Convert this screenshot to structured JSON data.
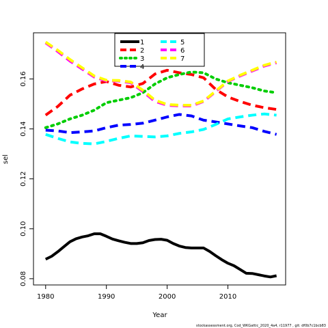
{
  "chart_data": {
    "type": "line",
    "xlabel": "Year",
    "ylabel": "sel",
    "xlim": [
      1978,
      2019.5
    ],
    "ylim": [
      0.0775,
      0.1785
    ],
    "x_ticks": [
      1980,
      1990,
      2000,
      2010
    ],
    "y_ticks": [
      0.08,
      0.1,
      0.12,
      0.14,
      0.16
    ],
    "y_tick_labels": [
      "0.08",
      "0.10",
      "0.12",
      "0.14",
      "0.16"
    ],
    "legend_position": "top-center",
    "footnote": "stockassessment.org, Cod_WKGattic_2020_4a4, r11977 , git: df0b7c1bcb83",
    "series": [
      {
        "name": "1",
        "color": "#000000",
        "dash": "solid",
        "x": [
          1980,
          1981,
          1982,
          1983,
          1984,
          1985,
          1986,
          1987,
          1988,
          1989,
          1990,
          1991,
          1992,
          1993,
          1994,
          1995,
          1996,
          1997,
          1998,
          1999,
          2000,
          2001,
          2002,
          2003,
          2004,
          2005,
          2006,
          2007,
          2008,
          2009,
          2010,
          2011,
          2012,
          2013,
          2014,
          2015,
          2016,
          2017,
          2018
        ],
        "y": [
          0.0878,
          0.089,
          0.0908,
          0.0928,
          0.0948,
          0.096,
          0.0967,
          0.0972,
          0.098,
          0.098,
          0.097,
          0.0959,
          0.0952,
          0.0946,
          0.0941,
          0.0941,
          0.0944,
          0.0953,
          0.0957,
          0.0958,
          0.0954,
          0.0941,
          0.0931,
          0.0925,
          0.0923,
          0.0923,
          0.0923,
          0.0909,
          0.0892,
          0.0876,
          0.0862,
          0.0852,
          0.0837,
          0.0822,
          0.0821,
          0.0816,
          0.0811,
          0.0807,
          0.0812
        ]
      },
      {
        "name": "2",
        "color": "#ff0000",
        "dash": "dashed",
        "x": [
          1980,
          1982,
          1984,
          1986,
          1988,
          1990,
          1992,
          1994,
          1996,
          1998,
          2000,
          2002,
          2004,
          2006,
          2008,
          2010,
          2012,
          2014,
          2016,
          2018
        ],
        "y": [
          0.1455,
          0.149,
          0.1535,
          0.156,
          0.158,
          0.159,
          0.1575,
          0.1568,
          0.1582,
          0.162,
          0.1635,
          0.1625,
          0.1618,
          0.1605,
          0.1558,
          0.1528,
          0.151,
          0.1495,
          0.1485,
          0.1478
        ]
      },
      {
        "name": "3",
        "color": "#00cd00",
        "dash": "dotted",
        "x": [
          1980,
          1982,
          1984,
          1986,
          1988,
          1990,
          1992,
          1994,
          1996,
          1998,
          2000,
          2002,
          2004,
          2006,
          2008,
          2010,
          2012,
          2014,
          2016,
          2018
        ],
        "y": [
          0.1405,
          0.142,
          0.144,
          0.1455,
          0.1475,
          0.1505,
          0.1515,
          0.1525,
          0.1545,
          0.158,
          0.1605,
          0.1618,
          0.1628,
          0.1625,
          0.16,
          0.1585,
          0.1575,
          0.1565,
          0.1552,
          0.1545
        ]
      },
      {
        "name": "4",
        "color": "#0000ff",
        "dash": "dashed",
        "x": [
          1980,
          1982,
          1984,
          1986,
          1988,
          1990,
          1992,
          1994,
          1996,
          1998,
          2000,
          2002,
          2004,
          2006,
          2008,
          2010,
          2012,
          2014,
          2016,
          2018
        ],
        "y": [
          0.1395,
          0.1392,
          0.1385,
          0.1388,
          0.1392,
          0.1405,
          0.1415,
          0.1418,
          0.1423,
          0.1435,
          0.1448,
          0.1458,
          0.1452,
          0.1435,
          0.1428,
          0.142,
          0.1412,
          0.1405,
          0.139,
          0.1378
        ]
      },
      {
        "name": "5",
        "color": "#00ffff",
        "dash": "dashed",
        "x": [
          1980,
          1982,
          1984,
          1986,
          1988,
          1990,
          1992,
          1994,
          1996,
          1998,
          2000,
          2002,
          2004,
          2006,
          2008,
          2010,
          2012,
          2014,
          2016,
          2018
        ],
        "y": [
          0.1378,
          0.1362,
          0.1348,
          0.1342,
          0.134,
          0.135,
          0.1362,
          0.1372,
          0.137,
          0.1368,
          0.1372,
          0.1382,
          0.1388,
          0.1398,
          0.1418,
          0.144,
          0.1448,
          0.1455,
          0.146,
          0.1455
        ]
      },
      {
        "name": "6",
        "color": "#ff00ff",
        "dash": "dashed",
        "x": [
          1980,
          1982,
          1984,
          1986,
          1988,
          1990,
          1992,
          1994,
          1996,
          1998,
          2000,
          2002,
          2004,
          2006,
          2008,
          2010,
          2012,
          2014,
          2016,
          2018
        ],
        "y": [
          0.1745,
          0.171,
          0.1672,
          0.164,
          0.1608,
          0.1592,
          0.1592,
          0.1585,
          0.155,
          0.151,
          0.1495,
          0.1492,
          0.1492,
          0.151,
          0.155,
          0.159,
          0.1612,
          0.1632,
          0.1652,
          0.1665
        ]
      },
      {
        "name": "7",
        "color": "#ffff00",
        "dash": "dashed",
        "x": [
          1980,
          1982,
          1984,
          1986,
          1988,
          1990,
          1992,
          1994,
          1996,
          1998,
          2000,
          2002,
          2004,
          2006,
          2008,
          2010,
          2012,
          2014,
          2016,
          2018
        ],
        "y": [
          0.1748,
          0.1715,
          0.1678,
          0.1645,
          0.1612,
          0.1595,
          0.1594,
          0.1588,
          0.1555,
          0.1515,
          0.1498,
          0.1495,
          0.1495,
          0.1512,
          0.1552,
          0.1592,
          0.1615,
          0.1635,
          0.1655,
          0.1668
        ]
      }
    ]
  }
}
